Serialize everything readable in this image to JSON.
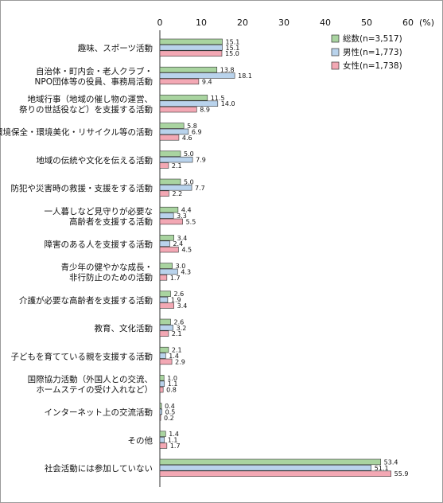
{
  "chart_data": {
    "type": "bar",
    "orientation": "horizontal",
    "unit_label": "(%)",
    "xlim": [
      0,
      60
    ],
    "xticks": [
      "0",
      "10",
      "20",
      "30",
      "40",
      "50",
      "60"
    ],
    "legend_position": "top-right",
    "categories": [
      [
        "趣味、スポーツ活動"
      ],
      [
        "自治体・町内会・老人クラブ・",
        "NPO団体等の役員、事務局活動"
      ],
      [
        "地域行事（地域の催し物の運営、",
        "祭りの世話役など）を支援する活動"
      ],
      [
        "環境保全・環境美化・リサイクル等の活動"
      ],
      [
        "地域の伝統や文化を伝える活動"
      ],
      [
        "防犯や災害時の救援・支援をする活動"
      ],
      [
        "一人暮しなど見守りが必要な",
        "高齢者を支援する活動"
      ],
      [
        "障害のある人を支援する活動"
      ],
      [
        "青少年の健やかな成長・",
        "非行防止のための活動"
      ],
      [
        "介護が必要な高齢者を支援する活動"
      ],
      [
        "教育、文化活動"
      ],
      [
        "子どもを育てている親を支援する活動"
      ],
      [
        "国際協力活動（外国人との交流、",
        "ホームステイの受け入れなど）"
      ],
      [
        "インターネット上の交流活動"
      ],
      [
        "その他"
      ],
      [
        "社会活動には参加していない"
      ]
    ],
    "series": [
      {
        "name": "総数(n=3,517)",
        "color": "#a9d4a0",
        "values": [
          15.1,
          13.8,
          11.5,
          5.8,
          5.0,
          5.0,
          4.4,
          3.4,
          3.0,
          2.6,
          2.6,
          2.1,
          1.0,
          0.4,
          1.4,
          53.4
        ]
      },
      {
        "name": "男性(n=1,773)",
        "color": "#b9d3ec",
        "values": [
          15.1,
          18.1,
          14.0,
          6.9,
          7.9,
          7.7,
          3.3,
          2.4,
          4.3,
          1.9,
          3.2,
          1.4,
          1.1,
          0.5,
          1.1,
          51.1
        ]
      },
      {
        "name": "女性(n=1,738)",
        "color": "#f3a8b4",
        "values": [
          15.0,
          9.4,
          8.9,
          4.6,
          2.1,
          2.2,
          5.5,
          4.5,
          1.7,
          3.4,
          2.1,
          2.9,
          0.8,
          0.2,
          1.7,
          55.9
        ]
      }
    ]
  }
}
